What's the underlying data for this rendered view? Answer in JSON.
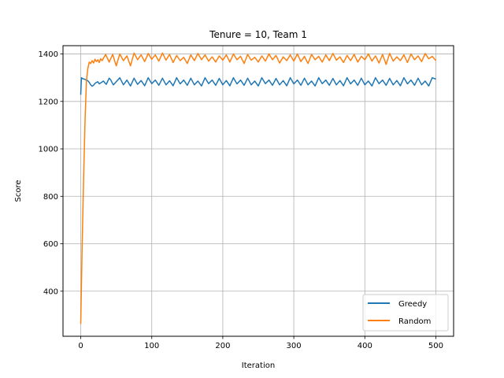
{
  "chart_data": {
    "type": "line",
    "title": "Tenure = 10, Team 1",
    "xlabel": "Iteration",
    "ylabel": "Score",
    "xlim": [
      -25,
      525
    ],
    "ylim": [
      210,
      1435
    ],
    "xticks": [
      0,
      100,
      200,
      300,
      400,
      500
    ],
    "yticks": [
      400,
      600,
      800,
      1000,
      1200,
      1400
    ],
    "grid": true,
    "legend_position": "lower-right",
    "series": [
      {
        "name": "Greedy",
        "color": "#1f77b4",
        "x": [
          0,
          1,
          3,
          5,
          8,
          10,
          12,
          14,
          16,
          18,
          20,
          22,
          24,
          26,
          28,
          30,
          32,
          34,
          36,
          38,
          40,
          42,
          44,
          46,
          48,
          50,
          55,
          60,
          65,
          70,
          75,
          80,
          85,
          90,
          95,
          100,
          105,
          110,
          115,
          120,
          125,
          130,
          135,
          140,
          145,
          150,
          155,
          160,
          165,
          170,
          175,
          180,
          185,
          190,
          195,
          200,
          205,
          210,
          215,
          220,
          225,
          230,
          235,
          240,
          245,
          250,
          255,
          260,
          265,
          270,
          275,
          280,
          285,
          290,
          295,
          300,
          305,
          310,
          315,
          320,
          325,
          330,
          335,
          340,
          345,
          350,
          355,
          360,
          365,
          370,
          375,
          380,
          385,
          390,
          395,
          400,
          405,
          410,
          415,
          420,
          425,
          430,
          435,
          440,
          445,
          450,
          455,
          460,
          465,
          470,
          475,
          480,
          485,
          490,
          495,
          500
        ],
        "values": [
          1228,
          1300,
          1296,
          1294,
          1290,
          1287,
          1280,
          1270,
          1264,
          1268,
          1276,
          1280,
          1283,
          1274,
          1278,
          1282,
          1286,
          1278,
          1272,
          1285,
          1298,
          1292,
          1280,
          1270,
          1276,
          1283,
          1300,
          1270,
          1290,
          1265,
          1298,
          1272,
          1288,
          1266,
          1300,
          1275,
          1290,
          1268,
          1298,
          1270,
          1287,
          1266,
          1300,
          1274,
          1290,
          1268,
          1298,
          1270,
          1286,
          1265,
          1300,
          1275,
          1290,
          1268,
          1297,
          1270,
          1288,
          1266,
          1300,
          1274,
          1290,
          1268,
          1298,
          1270,
          1286,
          1265,
          1300,
          1275,
          1290,
          1268,
          1297,
          1270,
          1288,
          1266,
          1300,
          1274,
          1290,
          1268,
          1298,
          1270,
          1286,
          1265,
          1300,
          1275,
          1290,
          1268,
          1297,
          1270,
          1288,
          1266,
          1300,
          1274,
          1290,
          1268,
          1298,
          1270,
          1286,
          1265,
          1300,
          1275,
          1290,
          1268,
          1297,
          1270,
          1288,
          1266,
          1300,
          1274,
          1290,
          1268,
          1298,
          1270,
          1286,
          1265,
          1300,
          1294
        ]
      },
      {
        "name": "Random",
        "color": "#ff7f0e",
        "x": [
          0,
          2,
          4,
          6,
          8,
          10,
          12,
          14,
          16,
          18,
          20,
          22,
          24,
          26,
          28,
          30,
          35,
          40,
          45,
          50,
          55,
          60,
          65,
          70,
          75,
          80,
          85,
          90,
          95,
          100,
          105,
          110,
          115,
          120,
          125,
          130,
          135,
          140,
          145,
          150,
          155,
          160,
          165,
          170,
          175,
          180,
          185,
          190,
          195,
          200,
          205,
          210,
          215,
          220,
          225,
          230,
          235,
          240,
          245,
          250,
          255,
          260,
          265,
          270,
          275,
          280,
          285,
          290,
          295,
          300,
          305,
          310,
          315,
          320,
          325,
          330,
          335,
          340,
          345,
          350,
          355,
          360,
          365,
          370,
          375,
          380,
          385,
          390,
          395,
          400,
          405,
          410,
          415,
          420,
          425,
          430,
          435,
          440,
          445,
          450,
          455,
          460,
          465,
          470,
          475,
          480,
          485,
          490,
          495,
          500
        ],
        "values": [
          262,
          590,
          880,
          1120,
          1290,
          1340,
          1366,
          1360,
          1372,
          1362,
          1378,
          1368,
          1376,
          1364,
          1380,
          1372,
          1398,
          1366,
          1398,
          1350,
          1400,
          1372,
          1392,
          1350,
          1404,
          1376,
          1396,
          1368,
          1402,
          1378,
          1396,
          1370,
          1404,
          1374,
          1398,
          1364,
          1394,
          1372,
          1386,
          1360,
          1396,
          1372,
          1402,
          1376,
          1396,
          1370,
          1388,
          1366,
          1392,
          1374,
          1396,
          1366,
          1400,
          1376,
          1390,
          1360,
          1398,
          1374,
          1386,
          1366,
          1392,
          1370,
          1400,
          1376,
          1394,
          1362,
          1388,
          1372,
          1396,
          1370,
          1400,
          1368,
          1390,
          1360,
          1398,
          1376,
          1390,
          1366,
          1396,
          1372,
          1402,
          1374,
          1388,
          1364,
          1394,
          1372,
          1398,
          1366,
          1390,
          1376,
          1400,
          1370,
          1392,
          1362,
          1398,
          1356,
          1402,
          1370,
          1388,
          1372,
          1396,
          1364,
          1400,
          1376,
          1392,
          1368,
          1402,
          1380,
          1390,
          1372
        ]
      }
    ]
  }
}
